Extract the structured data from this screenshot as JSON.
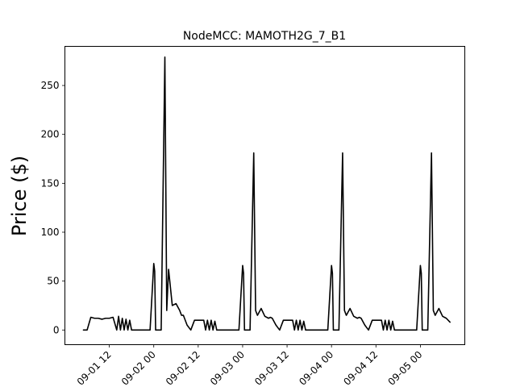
{
  "chart_data": {
    "type": "line",
    "title": "NodeMCC: MAMOTH2G_7_B1",
    "xlabel": "",
    "ylabel": "Price ($)",
    "xlim": [
      "2021-09-01 00:00",
      "2021-09-05 12:00"
    ],
    "ylim": [
      -15,
      290
    ],
    "x_ticks": [
      {
        "value": "2021-09-01 12:00",
        "label": "09-01 12"
      },
      {
        "value": "2021-09-02 00:00",
        "label": "09-02 00"
      },
      {
        "value": "2021-09-02 12:00",
        "label": "09-02 12"
      },
      {
        "value": "2021-09-03 00:00",
        "label": "09-03 00"
      },
      {
        "value": "2021-09-03 12:00",
        "label": "09-03 12"
      },
      {
        "value": "2021-09-04 00:00",
        "label": "09-04 00"
      },
      {
        "value": "2021-09-04 12:00",
        "label": "09-04 12"
      },
      {
        "value": "2021-09-05 00:00",
        "label": "09-05 00"
      }
    ],
    "y_ticks": [
      {
        "value": 0,
        "label": "0"
      },
      {
        "value": 50,
        "label": "50"
      },
      {
        "value": 100,
        "label": "100"
      },
      {
        "value": 150,
        "label": "150"
      },
      {
        "value": 200,
        "label": "200"
      },
      {
        "value": 250,
        "label": "250"
      }
    ],
    "grid": false,
    "line_color": "#000000",
    "series": [
      {
        "x": [
          "2021-09-01 05:00",
          "2021-09-01 06:00",
          "2021-09-01 07:00",
          "2021-09-01 08:00",
          "2021-09-01 09:00",
          "2021-09-01 10:00",
          "2021-09-01 11:00",
          "2021-09-01 12:00",
          "2021-09-01 13:00",
          "2021-09-01 14:00",
          "2021-09-01 14:30",
          "2021-09-01 15:00",
          "2021-09-01 15:30",
          "2021-09-01 16:00",
          "2021-09-01 16:30",
          "2021-09-01 17:00",
          "2021-09-01 17:30",
          "2021-09-01 18:00",
          "2021-09-01 18:30",
          "2021-09-01 19:00",
          "2021-09-01 20:00",
          "2021-09-01 22:00",
          "2021-09-01 23:00",
          "2021-09-02 00:00",
          "2021-09-02 00:15",
          "2021-09-02 00:30",
          "2021-09-02 01:00",
          "2021-09-02 02:00",
          "2021-09-02 03:00",
          "2021-09-02 03:30",
          "2021-09-02 04:00",
          "2021-09-02 05:00",
          "2021-09-02 06:00",
          "2021-09-02 07:00",
          "2021-09-02 07:30",
          "2021-09-02 08:00",
          "2021-09-02 09:00",
          "2021-09-02 10:00",
          "2021-09-02 11:00",
          "2021-09-02 12:00",
          "2021-09-02 13:00",
          "2021-09-02 13:30",
          "2021-09-02 14:00",
          "2021-09-02 14:30",
          "2021-09-02 15:00",
          "2021-09-02 15:30",
          "2021-09-02 16:00",
          "2021-09-02 16:30",
          "2021-09-02 17:00",
          "2021-09-02 18:00",
          "2021-09-02 20:00",
          "2021-09-02 22:00",
          "2021-09-02 23:00",
          "2021-09-03 00:00",
          "2021-09-03 00:15",
          "2021-09-03 00:30",
          "2021-09-03 01:00",
          "2021-09-03 02:00",
          "2021-09-03 03:00",
          "2021-09-03 03:30",
          "2021-09-03 04:00",
          "2021-09-03 05:00",
          "2021-09-03 06:00",
          "2021-09-03 07:00",
          "2021-09-03 07:30",
          "2021-09-03 08:00",
          "2021-09-03 09:00",
          "2021-09-03 10:00",
          "2021-09-03 11:00",
          "2021-09-03 12:00",
          "2021-09-03 13:00",
          "2021-09-03 13:30",
          "2021-09-03 14:00",
          "2021-09-03 14:30",
          "2021-09-03 15:00",
          "2021-09-03 15:30",
          "2021-09-03 16:00",
          "2021-09-03 16:30",
          "2021-09-03 17:00",
          "2021-09-03 18:00",
          "2021-09-03 20:00",
          "2021-09-03 22:00",
          "2021-09-03 23:00",
          "2021-09-04 00:00",
          "2021-09-04 00:15",
          "2021-09-04 00:30",
          "2021-09-04 01:00",
          "2021-09-04 02:00",
          "2021-09-04 03:00",
          "2021-09-04 03:30",
          "2021-09-04 04:00",
          "2021-09-04 05:00",
          "2021-09-04 06:00",
          "2021-09-04 07:00",
          "2021-09-04 07:30",
          "2021-09-04 08:00",
          "2021-09-04 09:00",
          "2021-09-04 10:00",
          "2021-09-04 11:00",
          "2021-09-04 12:00",
          "2021-09-04 13:00",
          "2021-09-04 13:30",
          "2021-09-04 14:00",
          "2021-09-04 14:30",
          "2021-09-04 15:00",
          "2021-09-04 15:30",
          "2021-09-04 16:00",
          "2021-09-04 16:30",
          "2021-09-04 17:00",
          "2021-09-04 18:00",
          "2021-09-04 20:00",
          "2021-09-04 22:00",
          "2021-09-04 23:00",
          "2021-09-05 00:00",
          "2021-09-05 00:15",
          "2021-09-05 00:30",
          "2021-09-05 01:00",
          "2021-09-05 02:00",
          "2021-09-05 03:00",
          "2021-09-05 03:30",
          "2021-09-05 04:00",
          "2021-09-05 05:00",
          "2021-09-05 06:00",
          "2021-09-05 07:00",
          "2021-09-05 08:00"
        ],
        "y": [
          0,
          0,
          13,
          12,
          12,
          11,
          12,
          12,
          13,
          0,
          14,
          0,
          12,
          0,
          11,
          0,
          10,
          0,
          0,
          0,
          0,
          0,
          0,
          68,
          60,
          0,
          0,
          0,
          279,
          20,
          62,
          25,
          27,
          20,
          15,
          15,
          5,
          0,
          10,
          10,
          10,
          10,
          0,
          10,
          0,
          10,
          0,
          9,
          0,
          0,
          0,
          0,
          0,
          66,
          58,
          0,
          0,
          0,
          181,
          20,
          15,
          22,
          14,
          12,
          13,
          12,
          5,
          0,
          10,
          10,
          10,
          10,
          0,
          10,
          0,
          10,
          0,
          9,
          0,
          0,
          0,
          0,
          0,
          66,
          58,
          0,
          0,
          0,
          181,
          20,
          15,
          22,
          14,
          12,
          13,
          12,
          5,
          0,
          10,
          10,
          10,
          10,
          0,
          10,
          0,
          10,
          0,
          9,
          0,
          0,
          0,
          0,
          0,
          66,
          58,
          0,
          0,
          0,
          181,
          20,
          15,
          22,
          14,
          12,
          8
        ]
      }
    ]
  }
}
